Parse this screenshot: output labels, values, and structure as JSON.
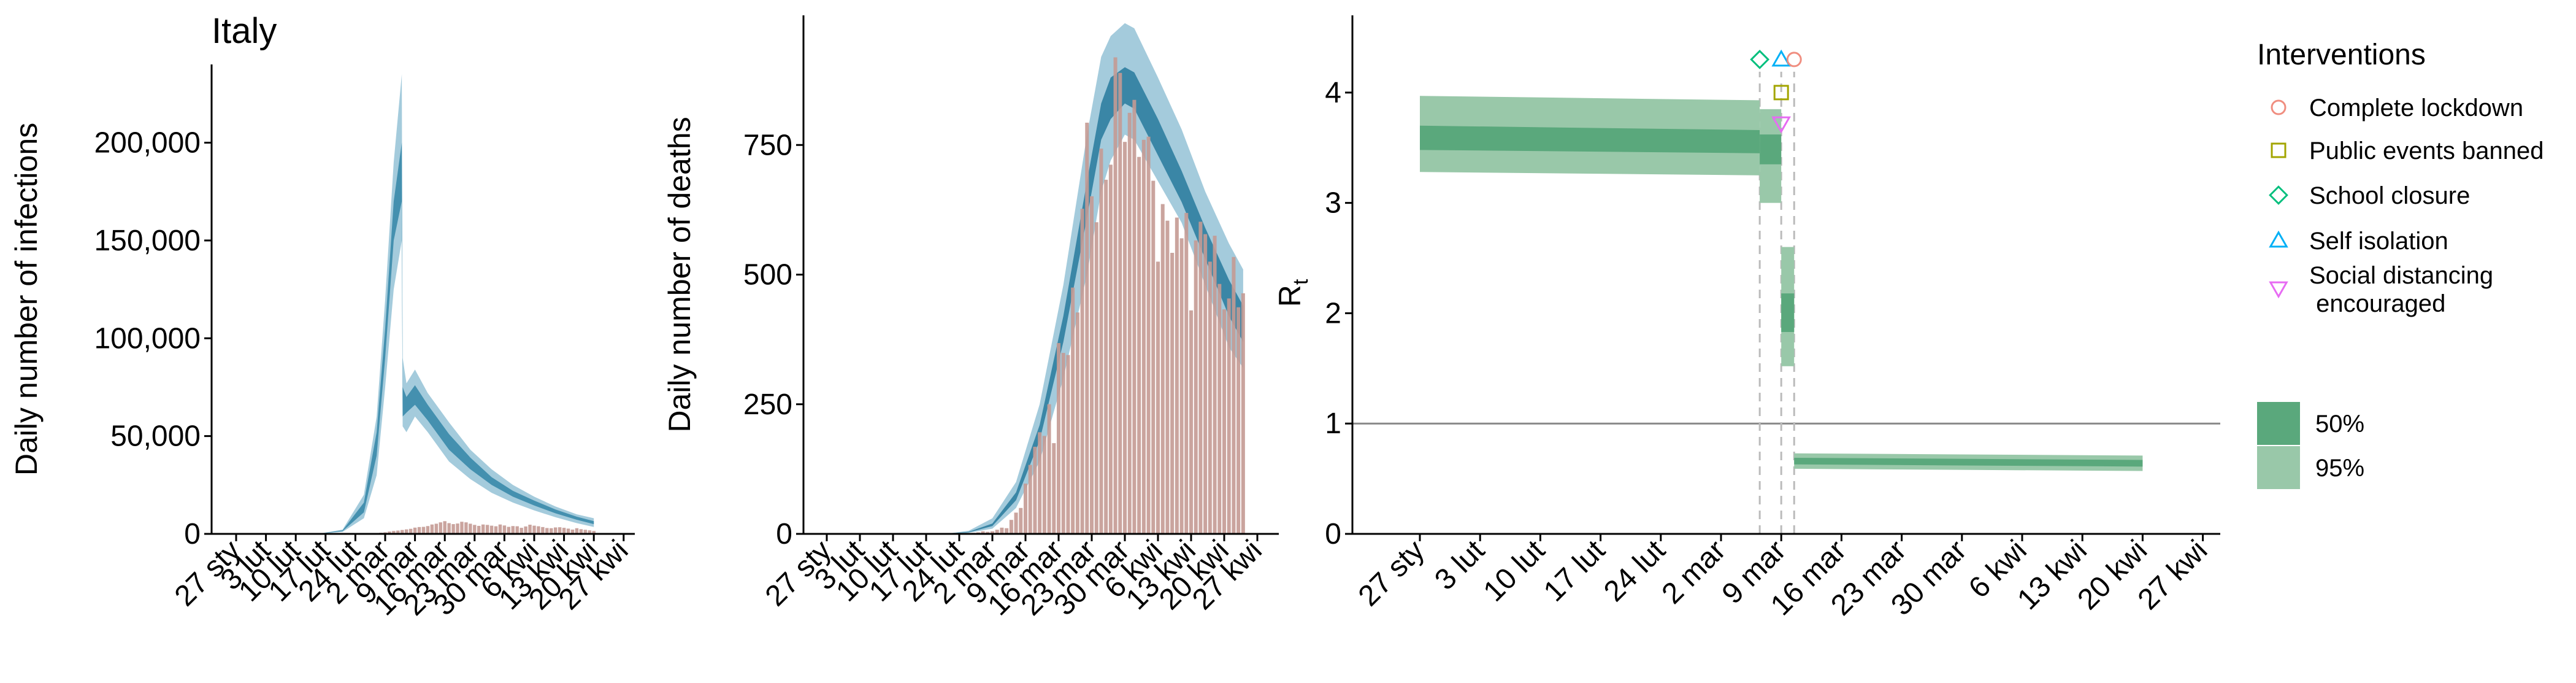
{
  "chart_data": [
    {
      "type": "area",
      "title": "Italy",
      "xlabel": "",
      "ylabel": "Daily number of infections",
      "ylim": [
        0,
        240000
      ],
      "yticks": [
        0,
        50000,
        100000,
        150000,
        200000
      ],
      "ytick_labels": [
        "0",
        "50,000",
        "100,000",
        "150,000",
        "200,000"
      ],
      "xtick_labels": [
        "27 sty",
        "3 lut",
        "10 lut",
        "17 lut",
        "24 lut",
        "2 mar",
        "9 mar",
        "16 mar",
        "23 mar",
        "30 mar",
        "6 kwi",
        "13 kwi",
        "20 kwi",
        "27 kwi"
      ],
      "x_note": "x values are days, 0 = 27 sty",
      "bands": [
        {
          "name": "95%",
          "color": "#9ac5d8",
          "x": [
            10,
            20,
            25,
            30,
            33,
            35,
            37,
            38.9,
            39.1,
            40,
            42,
            45,
            50,
            55,
            60,
            65,
            70,
            75,
            80,
            84
          ],
          "lo": [
            0,
            150,
            1000,
            8000,
            30000,
            75000,
            125000,
            150000,
            55000,
            52000,
            60000,
            52000,
            37000,
            28000,
            21000,
            16000,
            12000,
            8500,
            5500,
            3500
          ],
          "hi": [
            0,
            300,
            2200,
            20000,
            60000,
            120000,
            190000,
            235000,
            90000,
            77000,
            84000,
            72000,
            57000,
            43000,
            33000,
            25000,
            19000,
            14000,
            10000,
            8000
          ]
        },
        {
          "name": "50%",
          "color": "#3a8aaa",
          "x": [
            10,
            20,
            25,
            30,
            33,
            35,
            37,
            38.9,
            39.1,
            40,
            42,
            45,
            50,
            55,
            60,
            65,
            70,
            75,
            80,
            84
          ],
          "lo": [
            0,
            200,
            1400,
            11000,
            40000,
            90000,
            150000,
            170000,
            60000,
            62000,
            66000,
            58000,
            43000,
            33000,
            25000,
            19000,
            14500,
            10500,
            7200,
            5000
          ],
          "hi": [
            0,
            250,
            1800,
            16000,
            52000,
            105000,
            170000,
            200000,
            75000,
            70000,
            76000,
            66000,
            51000,
            39000,
            29000,
            22000,
            17000,
            12500,
            8800,
            6500
          ]
        }
      ],
      "bars": {
        "color": "#c49a93",
        "x": [
          34,
          35,
          36,
          37,
          38,
          39,
          40,
          41,
          42,
          43,
          44,
          45,
          46,
          47,
          48,
          49,
          50,
          51,
          52,
          53,
          54,
          55,
          56,
          57,
          58,
          59,
          60,
          61,
          62,
          63,
          64,
          65,
          66,
          67,
          68,
          69,
          70,
          71,
          72,
          73,
          74,
          75,
          76,
          77,
          78,
          79,
          80,
          81,
          82,
          83,
          84
        ],
        "values": [
          600,
          800,
          1200,
          1500,
          1700,
          2000,
          2300,
          2600,
          3200,
          3500,
          3600,
          4000,
          4800,
          5200,
          5900,
          6500,
          5500,
          5000,
          5300,
          6200,
          5900,
          5200,
          4600,
          4100,
          4800,
          4600,
          4200,
          3900,
          4800,
          4300,
          3600,
          4000,
          3900,
          3100,
          3800,
          4700,
          4200,
          3900,
          3500,
          3000,
          2900,
          3300,
          3400,
          3100,
          2700,
          2200,
          2900,
          2400,
          2100,
          1800,
          1500
        ]
      }
    },
    {
      "type": "area",
      "title": "",
      "xlabel": "",
      "ylabel": "Daily number of deaths",
      "ylim": [
        0,
        1000
      ],
      "yticks": [
        0,
        250,
        500,
        750
      ],
      "ytick_labels": [
        "0",
        "250",
        "500",
        "750"
      ],
      "xtick_labels": [
        "27 sty",
        "3 lut",
        "10 lut",
        "17 lut",
        "24 lut",
        "2 mar",
        "9 mar",
        "16 mar",
        "23 mar",
        "30 mar",
        "6 kwi",
        "13 kwi",
        "20 kwi",
        "27 kwi"
      ],
      "bands": [
        {
          "name": "95%",
          "color": "#9ac5d8",
          "x": [
            25,
            30,
            35,
            40,
            45,
            50,
            55,
            58,
            60,
            63,
            65,
            70,
            75,
            80,
            85,
            88
          ],
          "lo": [
            0,
            2,
            10,
            50,
            140,
            300,
            500,
            660,
            720,
            770,
            760,
            680,
            600,
            480,
            360,
            320
          ],
          "hi": [
            0,
            6,
            30,
            100,
            250,
            480,
            770,
            920,
            960,
            985,
            975,
            880,
            780,
            660,
            560,
            510
          ]
        },
        {
          "name": "50%",
          "color": "#2f7ea0",
          "x": [
            25,
            30,
            35,
            40,
            45,
            50,
            55,
            58,
            60,
            63,
            65,
            70,
            75,
            80,
            85,
            88
          ],
          "lo": [
            0,
            3,
            15,
            65,
            180,
            370,
            610,
            760,
            800,
            830,
            820,
            730,
            640,
            530,
            420,
            370
          ],
          "hi": [
            0,
            4,
            20,
            80,
            210,
            420,
            680,
            830,
            880,
            900,
            890,
            800,
            700,
            590,
            490,
            440
          ]
        }
      ],
      "bars": {
        "color": "#c49a93",
        "x": [
          30,
          31,
          32,
          33,
          34,
          35,
          36,
          37,
          38,
          39,
          40,
          41,
          42,
          43,
          44,
          45,
          46,
          47,
          48,
          49,
          50,
          51,
          52,
          53,
          54,
          55,
          56,
          57,
          58,
          59,
          60,
          61,
          62,
          63,
          64,
          65,
          66,
          67,
          68,
          69,
          70,
          71,
          72,
          73,
          74,
          75,
          76,
          77,
          78,
          79,
          80,
          81,
          82,
          83,
          84,
          85,
          86,
          87,
          88
        ],
        "values": [
          1,
          2,
          3,
          5,
          4,
          5,
          8,
          12,
          11,
          27,
          41,
          50,
          97,
          133,
          168,
          196,
          189,
          250,
          175,
          368,
          349,
          345,
          475,
          427,
          627,
          793,
          651,
          601,
          743,
          683,
          712,
          919,
          889,
          756,
          812,
          837,
          727,
          760,
          766,
          681,
          525,
          636,
          604,
          542,
          610,
          570,
          619,
          431,
          566,
          602,
          578,
          525,
          575,
          482,
          433,
          454,
          534,
          437,
          464
        ]
      }
    },
    {
      "type": "area",
      "title": "",
      "xlabel": "",
      "ylabel": "R",
      "ylabel_sub": "t",
      "ylim": [
        0,
        4.7
      ],
      "yticks": [
        0,
        1,
        2,
        3,
        4
      ],
      "ytick_labels": [
        "0",
        "1",
        "2",
        "3",
        "4"
      ],
      "xtick_labels": [
        "27 sty",
        "3 lut",
        "10 lut",
        "17 lut",
        "24 lut",
        "2 mar",
        "9 mar",
        "16 mar",
        "23 mar",
        "30 mar",
        "6 kwi",
        "13 kwi",
        "20 kwi",
        "27 kwi"
      ],
      "reference_line": 1,
      "intervention_days": [
        39.5,
        42,
        43.5
      ],
      "segments": [
        {
          "x": [
            0,
            39.5
          ],
          "r95_lo": [
            3.28,
            3.25
          ],
          "r95_hi": [
            3.97,
            3.93
          ],
          "r50_lo": [
            3.48,
            3.45
          ],
          "r50_hi": [
            3.7,
            3.66
          ]
        },
        {
          "x": [
            39.5,
            42
          ],
          "r95_lo": [
            3.0,
            3.0
          ],
          "r95_hi": [
            3.85,
            3.85
          ],
          "r50_lo": [
            3.35,
            3.35
          ],
          "r50_hi": [
            3.62,
            3.62
          ]
        },
        {
          "x": [
            42,
            43.5
          ],
          "r95_lo": [
            1.52,
            1.52
          ],
          "r95_hi": [
            2.6,
            2.6
          ],
          "r50_lo": [
            1.83,
            1.83
          ],
          "r50_hi": [
            2.18,
            2.18
          ]
        },
        {
          "x": [
            43.5,
            84
          ],
          "r95_lo": [
            0.59,
            0.57
          ],
          "r95_hi": [
            0.73,
            0.71
          ],
          "r50_lo": [
            0.63,
            0.61
          ],
          "r50_hi": [
            0.69,
            0.67
          ]
        }
      ],
      "markers": [
        {
          "intervention": "School closure",
          "x": 39.5,
          "y": 4.3
        },
        {
          "intervention": "Self isolation",
          "x": 42,
          "y": 4.3
        },
        {
          "intervention": "Complete lockdown",
          "x": 43.5,
          "y": 4.3
        },
        {
          "intervention": "Public events banned",
          "x": 42,
          "y": 4.0
        },
        {
          "intervention": "Social distancing encouraged",
          "x": 42,
          "y": 3.72
        }
      ]
    }
  ],
  "legend": {
    "interventions_title": "Interventions",
    "interventions": [
      {
        "label": "Complete lockdown",
        "shape": "circle",
        "color": "#f08e80"
      },
      {
        "label": "Public events banned",
        "shape": "square",
        "color": "#a3a500"
      },
      {
        "label": "School closure",
        "shape": "diamond",
        "color": "#00bf7d"
      },
      {
        "label": "Self isolation",
        "shape": "triangle-up",
        "color": "#00b0f6"
      },
      {
        "label": "Social distancing\n encouraged",
        "shape": "triangle-down",
        "color": "#e76bf3"
      }
    ],
    "intervals": [
      {
        "label": "50%",
        "color": "#5aa87c"
      },
      {
        "label": "95%",
        "color": "#99c8a9"
      }
    ]
  },
  "colors": {
    "r_band_95": "#99c8a9",
    "r_band_50": "#5aa87c",
    "reference_line": "#888888",
    "vline": "#bbbbbb"
  }
}
